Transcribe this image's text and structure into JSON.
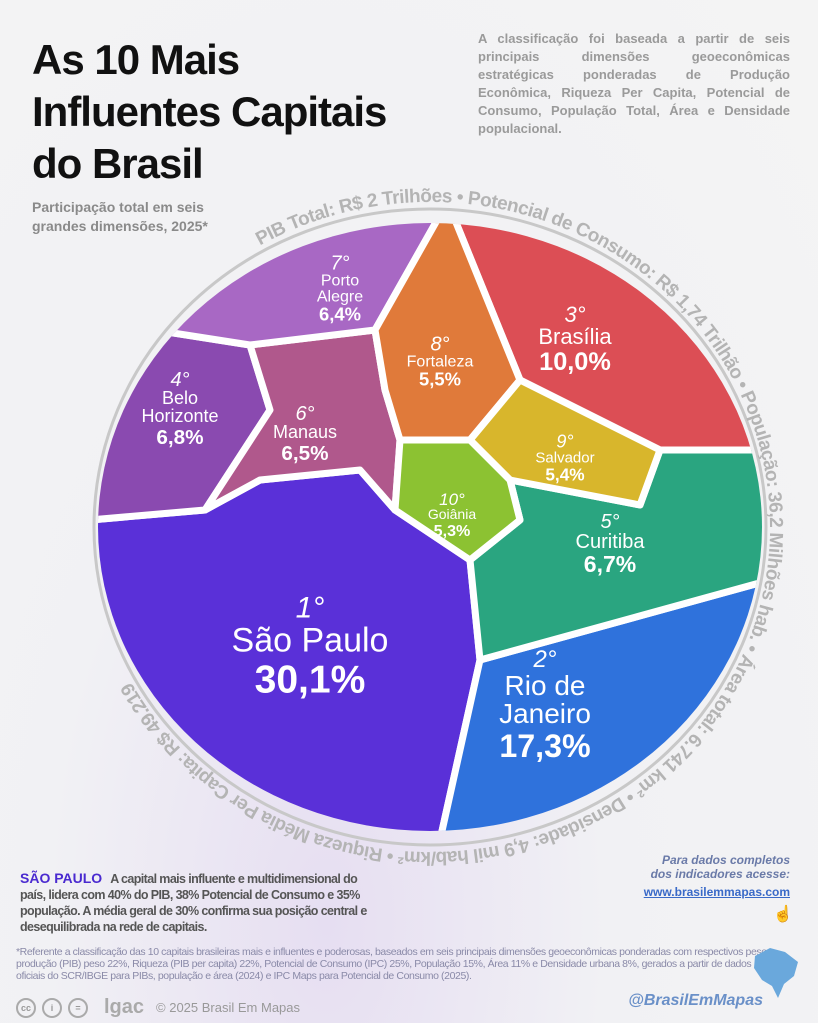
{
  "header": {
    "title": "As 10 Mais Influentes Capitais do Brasil",
    "intro": "A classificação foi baseada a partir de seis principais dimensões geoeconômicas estratégicas ponderadas de Produção Econômica, Riqueza Per Capita, Potencial de Consumo, População Total, Área e Densidade populacional.",
    "subtitle": "Participação total em seis grandes dimensões, 2025*"
  },
  "ring_text": "PIB Total: R$ 2 Trilhões  •  Potencial de Consumo: R$ 1,74 Trilhão  •  População: 36,2 Milhões hab.  •  Área total: 6.741 km²  •  Densidade: 4,9 mil hab/km²  •  Riqueza Média Per Capita: R$ 49.219",
  "chart_data": {
    "type": "voronoi-treemap",
    "unit": "%",
    "categories": [
      "São Paulo",
      "Rio de Janeiro",
      "Brasília",
      "Belo Horizonte",
      "Curitiba",
      "Manaus",
      "Porto Alegre",
      "Fortaleza",
      "Salvador",
      "Goiânia"
    ],
    "ranks": [
      "1°",
      "2°",
      "3°",
      "4°",
      "5°",
      "6°",
      "7°",
      "8°",
      "9°",
      "10°"
    ],
    "values": [
      30.1,
      17.3,
      10.0,
      6.8,
      6.7,
      6.5,
      6.4,
      5.5,
      5.4,
      5.3
    ],
    "value_labels": [
      "30,1%",
      "17,3%",
      "10,0%",
      "6,8%",
      "6,7%",
      "6,5%",
      "6,4%",
      "5,5%",
      "5,4%",
      "5,3%"
    ],
    "colors": [
      "#5a30d8",
      "#2f72dc",
      "#dc4e55",
      "#8a4ab0",
      "#2aa580",
      "#b0588c",
      "#a868c4",
      "#e07a3a",
      "#d8b62c",
      "#8cc232"
    ]
  },
  "description": {
    "city": "SÃO PAULO",
    "text": "A capital mais influente e multidimensional do país, lidera com 40% do PIB, 38% Potencial de Consumo e 35% população. A média geral de 30% confirma sua posição central e desequilibrada na rede de capitais."
  },
  "cta": {
    "line1": "Para dados completos",
    "line2": "dos indicadores acesse:",
    "link": "www.brasilemmapas.com"
  },
  "footnote": "*Referente a classificação das 10 capitais brasileiras mais e influentes e poderosas, baseados em seis principais dimensões geoeconômicas ponderadas com respectivos pesos: produção (PIB) peso 22%, Riqueza (PIB per capita) 22%, Potencial de Consumo (IPC) 25%, População 15%, Área 11% e Densidade urbana 8%, gerados a partir de dados oficiais do SCR/IBGE para PIBs, população e área (2024) e IPC Maps para Potencial de Consumo (2025).",
  "footer": {
    "license_icons": [
      "cc",
      "by",
      "nd"
    ],
    "logo": "lgac",
    "copyright": "© 2025 Brasil Em Mapas",
    "handle": "@BrasilEmMapas"
  }
}
